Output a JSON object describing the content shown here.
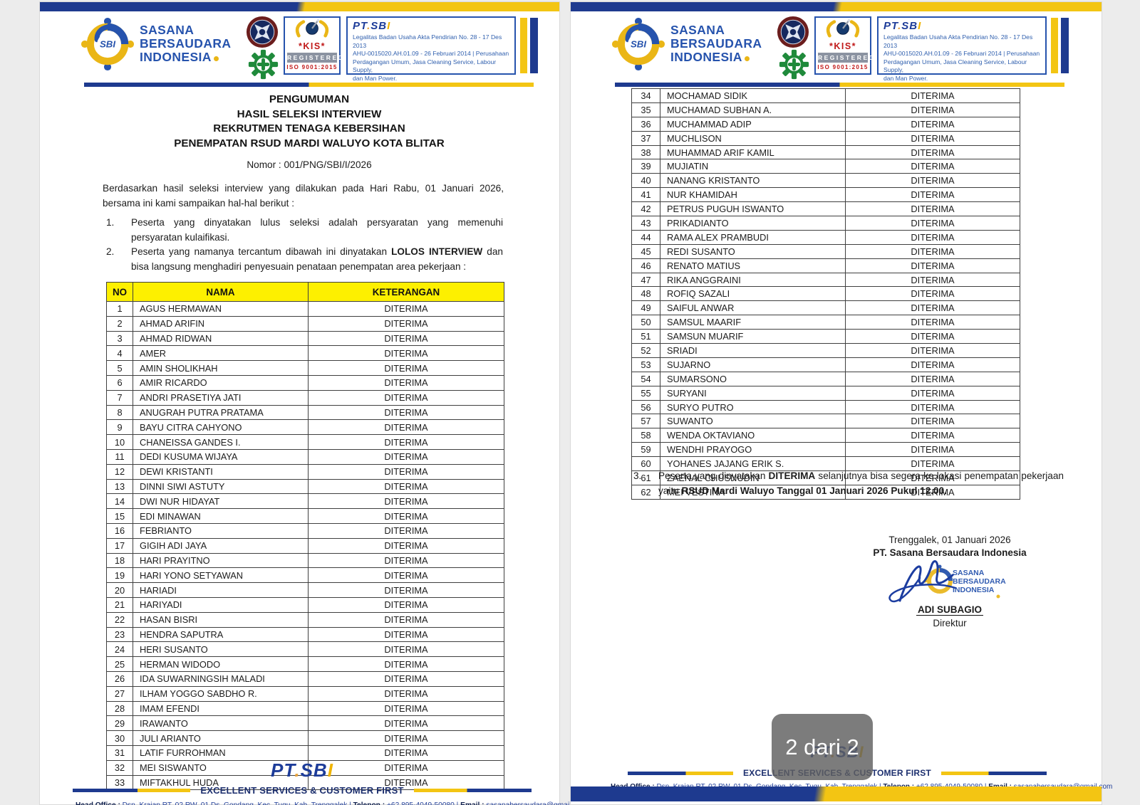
{
  "page_indicator": "2 dari 2",
  "brand": {
    "monogram": "SBI",
    "wordmark_pt": "PT",
    "wordmark_dot": ".",
    "wordmark_sb": "SB",
    "wordmark_i": "I"
  },
  "company": {
    "name_lines": [
      "SASANA",
      "BERSAUDARA",
      "INDONESIA"
    ],
    "legal_lines": [
      "Legalitas Badan Usaha Akta Pendirian No. 28 - 17 Des 2013",
      "AHU-0015020.AH.01.09 - 26 Februari 2014 | Perusahaan",
      "Perdagangan Umum, Jasa Cleaning Service, Labour Supply,",
      "dan Man Power."
    ],
    "kis": {
      "kis": "*KIS*",
      "registered": "REGISTERED",
      "iso": "ISO 9001:2015"
    }
  },
  "announcement": {
    "title_lines": [
      "PENGUMUMAN",
      "HASIL SELEKSI INTERVIEW",
      "REKRUTMEN TENAGA KEBERSIHAN",
      "PENEMPATAN RSUD MARDI WALUYO KOTA BLITAR"
    ],
    "number": "Nomor : 001/PNG/SBI/I/2026",
    "intro": "Berdasarkan hasil seleksi interview yang dilakukan pada Hari Rabu, 01 Januari 2026, bersama ini kami sampaikan hal-hal berikut :",
    "point1_num": "1.",
    "point1": "Peserta yang dinyatakan lulus seleksi adalah persyaratan yang memenuhi persyaratan kulaifikasi.",
    "point2_num": "2.",
    "point2_pre": "Peserta yang namanya tercantum dibawah ini dinyatakan ",
    "point2_bold": "LOLOS INTERVIEW",
    "point2_post": " dan bisa langsung menghadiri penyesuain penataan penempatan area pekerjaan :",
    "point3_num": "3.",
    "point3_pre": "Peserta yang dinyatakan ",
    "point3_bold1": "DITERIMA",
    "point3_mid": " selanjutnya bisa segera ke lokasi penempatan pekerjaan yaitu ",
    "point3_bold2": "RSUD Mardi Waluyo Tanggal 01 Januari 2026 Pukul 12.00."
  },
  "table": {
    "headers": [
      "NO",
      "NAMA",
      "KETERANGAN"
    ],
    "page1_rows": [
      {
        "no": "1",
        "nama": "AGUS HERMAWAN",
        "keterangan": "DITERIMA"
      },
      {
        "no": "2",
        "nama": "AHMAD ARIFIN",
        "keterangan": "DITERIMA"
      },
      {
        "no": "3",
        "nama": "AHMAD RIDWAN",
        "keterangan": "DITERIMA"
      },
      {
        "no": "4",
        "nama": "AMER",
        "keterangan": "DITERIMA"
      },
      {
        "no": "5",
        "nama": "AMIN SHOLIKHAH",
        "keterangan": "DITERIMA"
      },
      {
        "no": "6",
        "nama": "AMIR RICARDO",
        "keterangan": "DITERIMA"
      },
      {
        "no": "7",
        "nama": "ANDRI PRASETIYA JATI",
        "keterangan": "DITERIMA"
      },
      {
        "no": "8",
        "nama": "ANUGRAH PUTRA PRATAMA",
        "keterangan": "DITERIMA"
      },
      {
        "no": "9",
        "nama": "BAYU CITRA CAHYONO",
        "keterangan": "DITERIMA"
      },
      {
        "no": "10",
        "nama": "CHANEISSA GANDES I.",
        "keterangan": "DITERIMA"
      },
      {
        "no": "11",
        "nama": "DEDI KUSUMA WIJAYA",
        "keterangan": "DITERIMA"
      },
      {
        "no": "12",
        "nama": "DEWI KRISTANTI",
        "keterangan": "DITERIMA"
      },
      {
        "no": "13",
        "nama": "DINNI SIWI ASTUTY",
        "keterangan": "DITERIMA"
      },
      {
        "no": "14",
        "nama": "DWI NUR HIDAYAT",
        "keterangan": "DITERIMA"
      },
      {
        "no": "15",
        "nama": "EDI MINAWAN",
        "keterangan": "DITERIMA"
      },
      {
        "no": "16",
        "nama": "FEBRIANTO",
        "keterangan": "DITERIMA"
      },
      {
        "no": "17",
        "nama": "GIGIH ADI JAYA",
        "keterangan": "DITERIMA"
      },
      {
        "no": "18",
        "nama": "HARI PRAYITNO",
        "keterangan": "DITERIMA"
      },
      {
        "no": "19",
        "nama": "HARI YONO SETYAWAN",
        "keterangan": "DITERIMA"
      },
      {
        "no": "20",
        "nama": "HARIADI",
        "keterangan": "DITERIMA"
      },
      {
        "no": "21",
        "nama": "HARIYADI",
        "keterangan": "DITERIMA"
      },
      {
        "no": "22",
        "nama": "HASAN BISRI",
        "keterangan": "DITERIMA"
      },
      {
        "no": "23",
        "nama": "HENDRA SAPUTRA",
        "keterangan": "DITERIMA"
      },
      {
        "no": "24",
        "nama": "HERI SUSANTO",
        "keterangan": "DITERIMA"
      },
      {
        "no": "25",
        "nama": "HERMAN WIDODO",
        "keterangan": "DITERIMA"
      },
      {
        "no": "26",
        "nama": "IDA SUWARNINGSIH MALADI",
        "keterangan": "DITERIMA"
      },
      {
        "no": "27",
        "nama": "ILHAM YOGGO SABDHO R.",
        "keterangan": "DITERIMA"
      },
      {
        "no": "28",
        "nama": "IMAM EFENDI",
        "keterangan": "DITERIMA"
      },
      {
        "no": "29",
        "nama": "IRAWANTO",
        "keterangan": "DITERIMA"
      },
      {
        "no": "30",
        "nama": "JULI ARIANTO",
        "keterangan": "DITERIMA"
      },
      {
        "no": "31",
        "nama": "LATIF FURROHMAN",
        "keterangan": "DITERIMA"
      },
      {
        "no": "32",
        "nama": "MEI SISWANTO",
        "keterangan": "DITERIMA"
      },
      {
        "no": "33",
        "nama": "MIFTAKHUL HUDA",
        "keterangan": "DITERIMA"
      }
    ],
    "page2_rows": [
      {
        "no": "34",
        "nama": "MOCHAMAD SIDIK",
        "keterangan": "DITERIMA"
      },
      {
        "no": "35",
        "nama": "MUCHAMAD SUBHAN A.",
        "keterangan": "DITERIMA"
      },
      {
        "no": "36",
        "nama": "MUCHAMMAD ADIP",
        "keterangan": "DITERIMA"
      },
      {
        "no": "37",
        "nama": "MUCHLISON",
        "keterangan": "DITERIMA"
      },
      {
        "no": "38",
        "nama": "MUHAMMAD ARIF KAMIL",
        "keterangan": "DITERIMA"
      },
      {
        "no": "39",
        "nama": "MUJIATIN",
        "keterangan": "DITERIMA"
      },
      {
        "no": "40",
        "nama": "NANANG KRISTANTO",
        "keterangan": "DITERIMA"
      },
      {
        "no": "41",
        "nama": "NUR KHAMIDAH",
        "keterangan": "DITERIMA"
      },
      {
        "no": "42",
        "nama": "PETRUS PUGUH ISWANTO",
        "keterangan": "DITERIMA"
      },
      {
        "no": "43",
        "nama": "PRIKADIANTO",
        "keterangan": "DITERIMA"
      },
      {
        "no": "44",
        "nama": "RAMA ALEX PRAMBUDI",
        "keterangan": "DITERIMA"
      },
      {
        "no": "45",
        "nama": "REDI SUSANTO",
        "keterangan": "DITERIMA"
      },
      {
        "no": "46",
        "nama": "RENATO MATIUS",
        "keterangan": "DITERIMA"
      },
      {
        "no": "47",
        "nama": "RIKA ANGGRAINI",
        "keterangan": "DITERIMA"
      },
      {
        "no": "48",
        "nama": "ROFIQ SAZALI",
        "keterangan": "DITERIMA"
      },
      {
        "no": "49",
        "nama": "SAIFUL ANWAR",
        "keterangan": "DITERIMA"
      },
      {
        "no": "50",
        "nama": "SAMSUL MAARIF",
        "keterangan": "DITERIMA"
      },
      {
        "no": "51",
        "nama": "SAMSUN MUARIF",
        "keterangan": "DITERIMA"
      },
      {
        "no": "52",
        "nama": "SRIADI",
        "keterangan": "DITERIMA"
      },
      {
        "no": "53",
        "nama": "SUJARNO",
        "keterangan": "DITERIMA"
      },
      {
        "no": "54",
        "nama": "SUMARSONO",
        "keterangan": "DITERIMA"
      },
      {
        "no": "55",
        "nama": "SURYANI",
        "keterangan": "DITERIMA"
      },
      {
        "no": "56",
        "nama": "SURYO PUTRO",
        "keterangan": "DITERIMA"
      },
      {
        "no": "57",
        "nama": "SUWANTO",
        "keterangan": "DITERIMA"
      },
      {
        "no": "58",
        "nama": "WENDA OKTAVIANO",
        "keterangan": "DITERIMA"
      },
      {
        "no": "59",
        "nama": "WENDHI PRAYOGO",
        "keterangan": "DITERIMA"
      },
      {
        "no": "60",
        "nama": "YOHANES JAJANG ERIK S.",
        "keterangan": "DITERIMA"
      },
      {
        "no": "61",
        "nama": "ZAENAL CHUSNUDIN",
        "keterangan": "DITERIMA"
      },
      {
        "no": "62",
        "nama": "MEI VESTINA",
        "keterangan": "DITERIMA"
      }
    ]
  },
  "signature": {
    "place_date": "Trenggalek, 01 Januari 2026",
    "company": "PT. Sasana Bersaudara Indonesia",
    "name": "ADI SUBAGIO",
    "title": "Direktur"
  },
  "footer": {
    "tagline": "EXCELLENT SERVICES & CUSTOMER FIRST",
    "head_office_label": "Head Office :",
    "head_office_value": " Dsn. Krajan RT. 02 RW. 01 Ds. Gondang, Kec. Tugu, Kab. Trenggalek | ",
    "telepon_label": "Telepon :",
    "telepon_value": " +62 895-4049-50080 | ",
    "email_label": "Email :",
    "email_value": " sasanabersaudara@gmail.com"
  },
  "colors": {
    "bar_blue": "#1e3a8f",
    "bar_yellow": "#f3c513",
    "table_header_yellow": "#fdf000",
    "brand_blue": "#2653ad",
    "kis_red": "#c01818",
    "gear_green": "#1f8a3b"
  }
}
